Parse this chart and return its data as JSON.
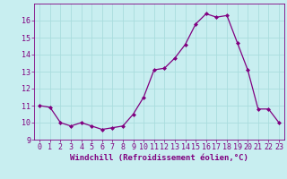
{
  "x": [
    0,
    1,
    2,
    3,
    4,
    5,
    6,
    7,
    8,
    9,
    10,
    11,
    12,
    13,
    14,
    15,
    16,
    17,
    18,
    19,
    20,
    21,
    22,
    23
  ],
  "y": [
    11.0,
    10.9,
    10.0,
    9.8,
    10.0,
    9.8,
    9.6,
    9.7,
    9.8,
    10.5,
    11.5,
    13.1,
    13.2,
    13.8,
    14.6,
    15.8,
    16.4,
    16.2,
    16.3,
    14.7,
    13.1,
    10.8,
    10.8,
    10.0
  ],
  "line_color": "#800080",
  "marker": "D",
  "marker_size": 2.0,
  "bg_color": "#c8eef0",
  "grid_color": "#aadddd",
  "xlabel": "Windchill (Refroidissement éolien,°C)",
  "ylim": [
    9,
    17
  ],
  "xlim_min": -0.5,
  "xlim_max": 23.5,
  "yticks": [
    9,
    10,
    11,
    12,
    13,
    14,
    15,
    16
  ],
  "xticks": [
    0,
    1,
    2,
    3,
    4,
    5,
    6,
    7,
    8,
    9,
    10,
    11,
    12,
    13,
    14,
    15,
    16,
    17,
    18,
    19,
    20,
    21,
    22,
    23
  ],
  "tick_color": "#800080",
  "label_fontsize": 6.5,
  "tick_fontsize": 6.0,
  "spine_color": "#800080",
  "linewidth": 0.9
}
